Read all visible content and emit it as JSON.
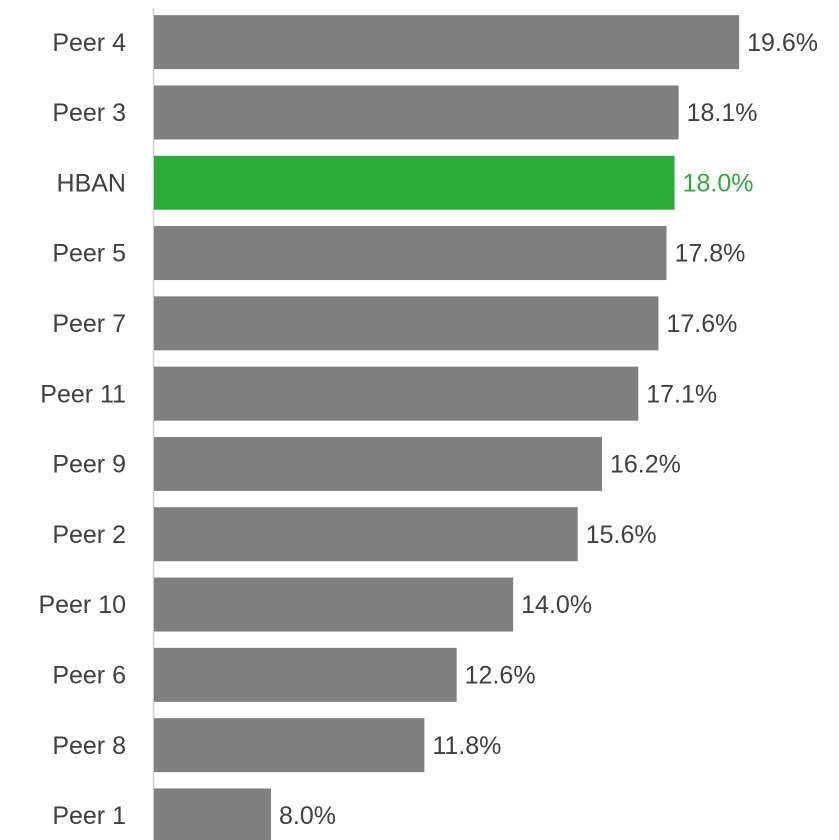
{
  "chart_data": {
    "type": "barh",
    "categories": [
      "Peer 4",
      "Peer 3",
      "HBAN",
      "Peer 5",
      "Peer 7",
      "Peer 11",
      "Peer 9",
      "Peer 2",
      "Peer 10",
      "Peer 6",
      "Peer 8",
      "Peer 1"
    ],
    "values": [
      19.6,
      18.1,
      18.0,
      17.8,
      17.6,
      17.1,
      16.2,
      15.6,
      14.0,
      12.6,
      11.8,
      8.0
    ],
    "value_labels": [
      "19.6%",
      "18.1%",
      "18.0%",
      "17.8%",
      "17.6%",
      "17.1%",
      "16.2%",
      "15.6%",
      "14.0%",
      "12.6%",
      "11.8%",
      "8.0%"
    ],
    "colors": [
      "#7f7f7f",
      "#7f7f7f",
      "#2eac3a",
      "#7f7f7f",
      "#7f7f7f",
      "#7f7f7f",
      "#7f7f7f",
      "#7f7f7f",
      "#7f7f7f",
      "#7f7f7f",
      "#7f7f7f",
      "#7f7f7f"
    ],
    "value_label_colors": [
      "#404040",
      "#404040",
      "#2eac3a",
      "#404040",
      "#404040",
      "#404040",
      "#404040",
      "#404040",
      "#404040",
      "#404040",
      "#404040",
      "#404040"
    ],
    "xlim": [
      5.1,
      22
    ]
  }
}
